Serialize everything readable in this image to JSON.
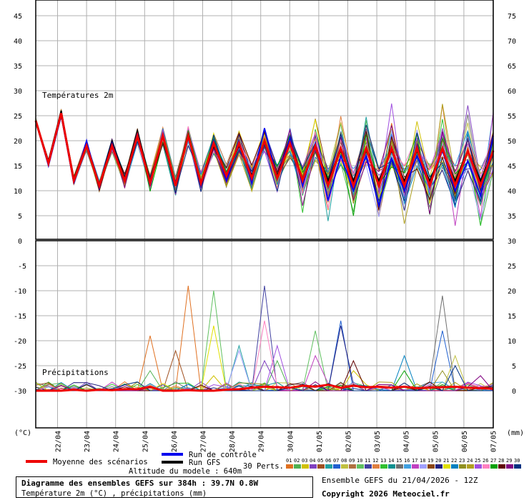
{
  "chart_data": {
    "type": "line",
    "left_axis_unit": "(°C)",
    "right_axis_unit": "(mm)",
    "x_labels": [
      "22/04",
      "23/04",
      "24/04",
      "25/04",
      "26/04",
      "27/04",
      "28/04",
      "29/04",
      "30/04",
      "01/05",
      "02/05",
      "03/05",
      "04/05",
      "05/05",
      "06/05",
      "07/05"
    ],
    "temperature_panel": {
      "label": "Températures 2m",
      "left_ticks": [
        45,
        40,
        35,
        30,
        25,
        20,
        15,
        10,
        5,
        0
      ],
      "right_ticks": [
        75,
        70,
        65,
        60,
        55,
        50,
        45,
        40,
        35,
        30
      ],
      "ylim": [
        0,
        48
      ],
      "mean_series": [
        24,
        15.5,
        25.5,
        12,
        19,
        11,
        19,
        12,
        21,
        11.5,
        21,
        11,
        21,
        11.5,
        19.5,
        13,
        19.5,
        12.5,
        20,
        12.5,
        19.5,
        12,
        19,
        11,
        18.5,
        11,
        18.5,
        11,
        18.5,
        11,
        18.5,
        11,
        18.5,
        11,
        18,
        11,
        18
      ],
      "control_series": [
        24,
        15,
        25,
        11.5,
        20,
        10.5,
        19.5,
        12,
        21.5,
        11,
        21,
        11.5,
        21,
        11,
        20,
        12,
        20,
        11.5,
        22.5,
        12.5,
        20.5,
        11,
        19.5,
        8,
        17,
        10,
        17,
        7,
        16.5,
        10,
        17,
        11,
        18,
        10,
        16,
        9,
        21
      ],
      "gfs_series": [
        24,
        16,
        26,
        12,
        19,
        11,
        20,
        12.5,
        22,
        12,
        21,
        11,
        21,
        11,
        19,
        13,
        19,
        13,
        20,
        13,
        20,
        12,
        19,
        12,
        18,
        12,
        18,
        12,
        18,
        12,
        18,
        12,
        18,
        12,
        18,
        12,
        18
      ]
    },
    "precip_panel": {
      "label": "Précipitations",
      "left_ticks": [
        -5,
        -10,
        -15,
        -20,
        -25,
        -30
      ],
      "right_ticks": [
        25,
        20,
        15,
        10,
        5,
        0
      ],
      "ylim": [
        0,
        30
      ],
      "mean_series": [
        0,
        0,
        0,
        0.2,
        0,
        0.2,
        0.1,
        0.3,
        0.3,
        0.8,
        0,
        0,
        0.1,
        0,
        0,
        0.2,
        0.3,
        0.6,
        0.8,
        0.7,
        0.6,
        1.0,
        0.8,
        1.2,
        0.6,
        1.0,
        0.7,
        0.8,
        0.6,
        0.8,
        0.5,
        0.6,
        0.7,
        0.8,
        0.6,
        0.5,
        0.4
      ]
    },
    "legend": {
      "mean_label": "Moyenne des scénarios",
      "control_label": "Run de contrôle",
      "gfs_label": "Run GFS",
      "perts_label": "30 Perts.",
      "altitude_label": "Altitude du modele : 640m",
      "pert_numbers": [
        "01",
        "02",
        "03",
        "04",
        "05",
        "06",
        "07",
        "08",
        "09",
        "10",
        "11",
        "12",
        "13",
        "14",
        "15",
        "16",
        "17",
        "18",
        "19",
        "20",
        "21",
        "22",
        "23",
        "24",
        "25",
        "26",
        "27",
        "28",
        "29",
        "30"
      ],
      "mean_color": "#ee0000",
      "control_color": "#0000ee",
      "gfs_color": "#000000",
      "pert_colors": [
        "#e07020",
        "#50b050",
        "#d0c000",
        "#8040c0",
        "#a05020",
        "#20a0a0",
        "#2060d0",
        "#c0c040",
        "#b07040",
        "#60c060",
        "#4040a0",
        "#e08040",
        "#30c030",
        "#109090",
        "#707070",
        "#40a0e0",
        "#c040c0",
        "#a0a0ff",
        "#8b4513",
        "#202080",
        "#e0e000",
        "#0080c0",
        "#909020",
        "#b0a020",
        "#a050e0",
        "#ff80c0",
        "#00a000",
        "#600000",
        "#800080",
        "#003080"
      ]
    }
  },
  "info": {
    "title": "Diagramme des ensembles GEFS sur 384h : 39.7N 0.8W",
    "subtitle": "Température 2m (°C) , précipitations (mm)",
    "run": "Ensemble GEFS du 21/04/2026 - 12Z",
    "copyright": "Copyright 2026 Meteociel.fr"
  }
}
